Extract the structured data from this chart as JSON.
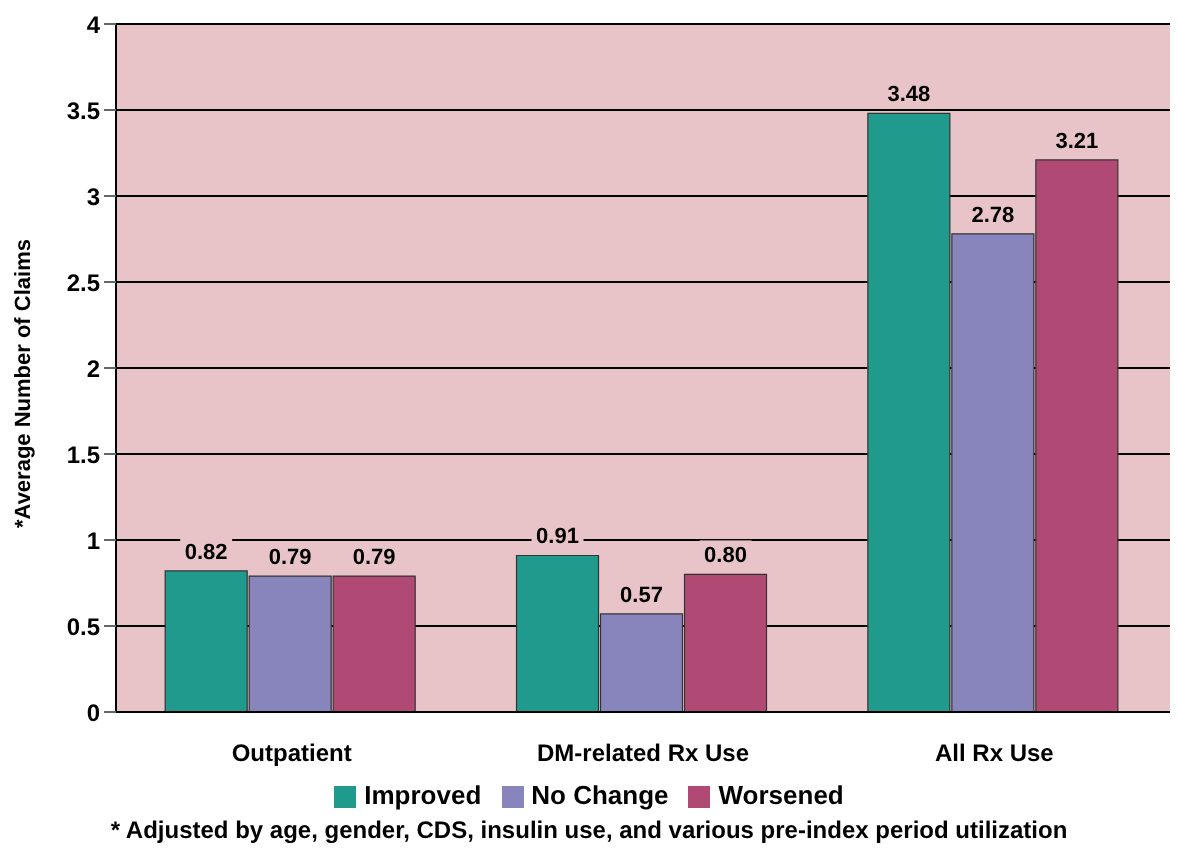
{
  "chart_data": {
    "type": "bar",
    "ylabel": "*Average Number of Claims",
    "categories": [
      "Outpatient",
      "DM-related Rx Use",
      "All Rx Use"
    ],
    "series": [
      {
        "name": "Improved",
        "color": "#1f9a8c",
        "values": [
          0.82,
          0.91,
          3.48
        ],
        "value_labels": [
          "0.82",
          "0.91",
          "3.48"
        ]
      },
      {
        "name": "No Change",
        "color": "#8884bc",
        "values": [
          0.79,
          0.57,
          2.78
        ],
        "value_labels": [
          "0.79",
          "0.57",
          "2.78"
        ]
      },
      {
        "name": "Worsened",
        "color": "#b04a74",
        "values": [
          0.79,
          0.8,
          3.21
        ],
        "value_labels": [
          "0.79",
          "0.80",
          "3.21"
        ]
      }
    ],
    "ylim": [
      0,
      4
    ],
    "yticks": [
      0,
      0.5,
      1,
      1.5,
      2,
      2.5,
      3,
      3.5,
      4
    ],
    "grid": "y",
    "legend": "bottom",
    "annotations": [
      "* Adjusted by age, gender, CDS, insulin use, and various pre-index period utilization"
    ]
  }
}
